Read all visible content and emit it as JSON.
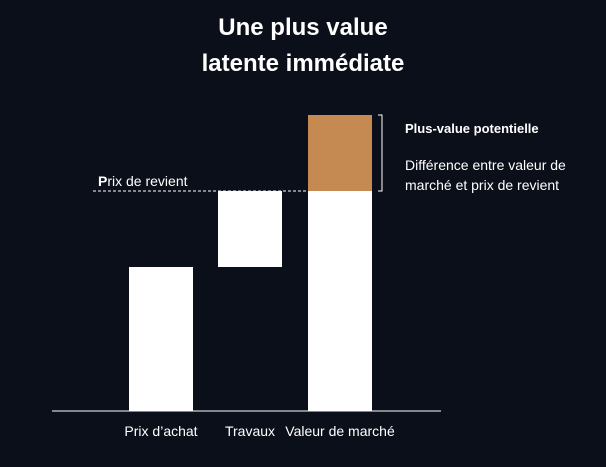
{
  "title_line1": "Une plus value",
  "title_line2": "latente immédiate",
  "colors": {
    "background": "#0b0f19",
    "bar": "#ffffff",
    "plus_value": "#c48a52",
    "text": "#ffffff"
  },
  "annotations": {
    "plus_value_title": "Plus-value potentielle",
    "plus_value_desc": "Différence entre valeur de marché et prix de revient",
    "prix_de_revient_first": "P",
    "prix_de_revient_rest": "rix de revient"
  },
  "chart_data": {
    "type": "bar",
    "subtype": "waterfall",
    "title": "Une plus value latente immédiate",
    "categories": [
      "Prix d’achat",
      "Travaux",
      "Valeur de marché"
    ],
    "values": [
      144,
      76,
      296
    ],
    "series": [
      {
        "category": "Prix d’achat",
        "base": 0,
        "value": 144
      },
      {
        "category": "Travaux",
        "base": 144,
        "value": 76
      },
      {
        "category": "Valeur de marché",
        "base": 0,
        "value": 220,
        "segment": "prix de revient"
      },
      {
        "category": "Valeur de marché",
        "base": 220,
        "value": 76,
        "segment": "plus-value potentielle"
      }
    ],
    "reference_line": {
      "label": "Prix de revient",
      "value": 220
    },
    "ylim": [
      0,
      300
    ],
    "axis_labels_visible": false,
    "grid": false
  }
}
